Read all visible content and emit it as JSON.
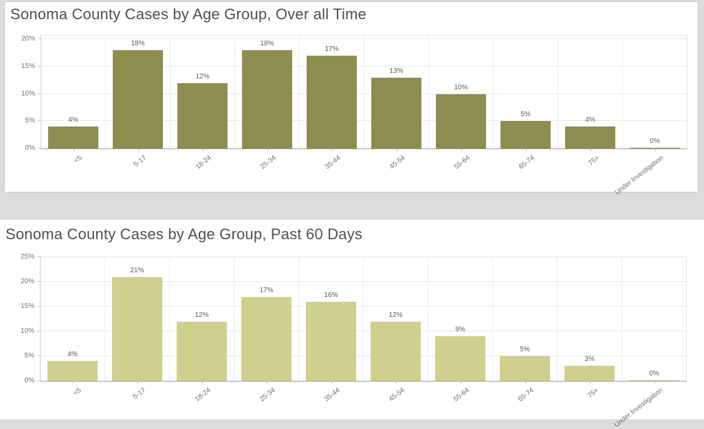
{
  "page": {
    "background_color": "#dcdcdc",
    "card_background": "#ffffff"
  },
  "chart_data": [
    {
      "type": "bar",
      "title": "Sonoma County Cases by Age Group, Over all Time",
      "categories": [
        "<5",
        "5-17",
        "18-24",
        "25-34",
        "35-44",
        "45-54",
        "55-64",
        "65-74",
        "75+",
        "Under Investigation"
      ],
      "values": [
        4,
        18,
        12,
        18,
        17,
        13,
        10,
        5,
        4,
        0
      ],
      "data_labels": [
        "4%",
        "18%",
        "12%",
        "18%",
        "17%",
        "13%",
        "10%",
        "5%",
        "4%",
        "0%"
      ],
      "y_tick_labels": [
        "0%",
        "5%",
        "10%",
        "15%",
        "20%"
      ],
      "y_tick_step": 5,
      "ylim": [
        0,
        20
      ],
      "xlabel": "",
      "ylabel": "",
      "grid": true,
      "legend": false,
      "bar_color": "#8e8d50"
    },
    {
      "type": "bar",
      "title": "Sonoma County Cases by Age Group, Past 60 Days",
      "categories": [
        "<5",
        "5-17",
        "18-24",
        "25-34",
        "35-44",
        "45-54",
        "55-64",
        "65-74",
        "75+",
        "Under Investigation"
      ],
      "values": [
        4,
        21,
        12,
        17,
        16,
        12,
        9,
        5,
        3,
        0
      ],
      "data_labels": [
        "4%",
        "21%",
        "12%",
        "17%",
        "16%",
        "12%",
        "9%",
        "5%",
        "3%",
        "0%"
      ],
      "y_tick_labels": [
        "0%",
        "5%",
        "10%",
        "15%",
        "20%",
        "25%"
      ],
      "y_tick_step": 5,
      "ylim": [
        0,
        25
      ],
      "xlabel": "",
      "ylabel": "",
      "grid": true,
      "legend": false,
      "bar_color": "#d0cf8d"
    }
  ]
}
